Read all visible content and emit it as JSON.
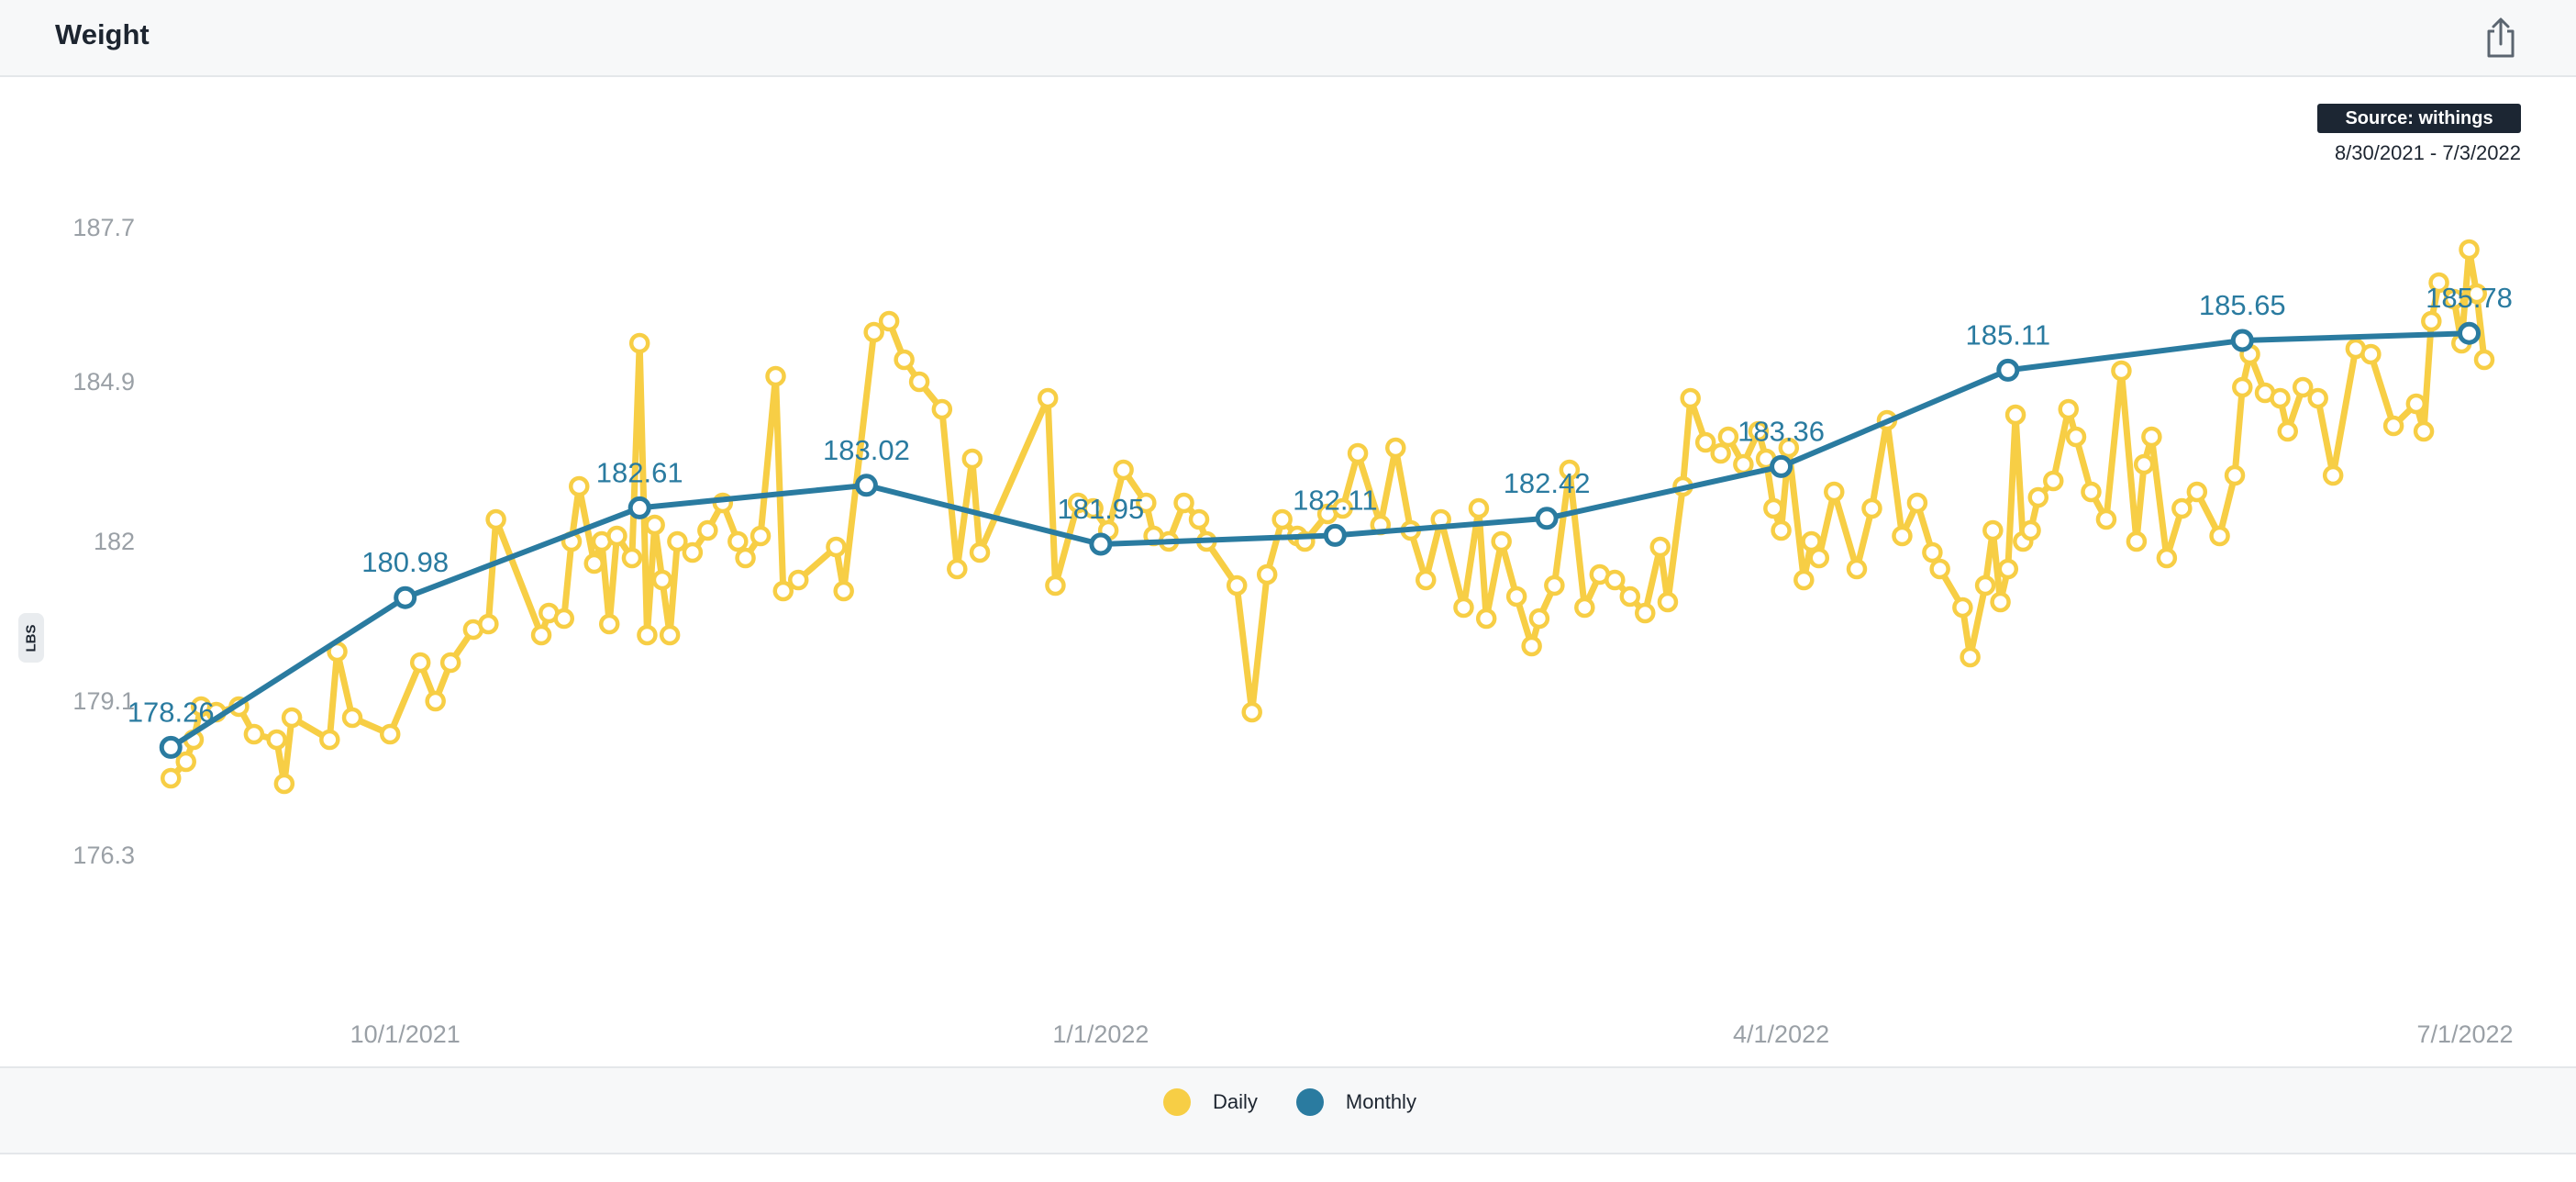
{
  "header": {
    "title": "Weight"
  },
  "source_label": "Source: withings",
  "date_range": "8/30/2021 - 7/3/2022",
  "unit_label": "LBS",
  "colors": {
    "daily": "#f7ce45",
    "monthly": "#2a7ba0",
    "overlap": "#216e3c"
  },
  "legend": {
    "daily": "Daily",
    "monthly": "Monthly"
  },
  "chart_data": {
    "type": "line",
    "title": "Weight",
    "ylabel": "LBS",
    "ylim": [
      174.5,
      189.0
    ],
    "xlim": [
      "2021-08-30",
      "2022-07-03"
    ],
    "y_ticks": [
      "187.7",
      "184.9",
      "182",
      "179.1",
      "176.3"
    ],
    "y_tick_values": [
      187.7,
      184.9,
      182.0,
      179.1,
      176.3
    ],
    "x_ticks": [
      "10/1/2021",
      "1/1/2022",
      "4/1/2022",
      "7/1/2022"
    ],
    "x_tick_dates": [
      "2021-10-01",
      "2022-01-01",
      "2022-04-01",
      "2022-07-01"
    ],
    "grid": false,
    "legend_position": "bottom",
    "series": [
      {
        "name": "Monthly",
        "points": [
          [
            "2021-08-31",
            178.26
          ],
          [
            "2021-10-01",
            180.98
          ],
          [
            "2021-11-01",
            182.61
          ],
          [
            "2021-12-01",
            183.02
          ],
          [
            "2022-01-01",
            181.95
          ],
          [
            "2022-02-01",
            182.11
          ],
          [
            "2022-03-01",
            182.42
          ],
          [
            "2022-04-01",
            183.36
          ],
          [
            "2022-05-01",
            185.11
          ],
          [
            "2022-06-01",
            185.65
          ],
          [
            "2022-07-01",
            185.78
          ]
        ],
        "labels": [
          "178.26",
          "180.98",
          "182.61",
          "183.02",
          "181.95",
          "182.11",
          "182.42",
          "183.36",
          "185.11",
          "185.65",
          "185.78"
        ]
      },
      {
        "name": "Daily",
        "points": [
          [
            "2021-08-31",
            177.7
          ],
          [
            "2021-09-02",
            178.0
          ],
          [
            "2021-09-03",
            178.4
          ],
          [
            "2021-09-04",
            179.0
          ],
          [
            "2021-09-06",
            178.9
          ],
          [
            "2021-09-09",
            179.0
          ],
          [
            "2021-09-11",
            178.5
          ],
          [
            "2021-09-14",
            178.4
          ],
          [
            "2021-09-15",
            177.6
          ],
          [
            "2021-09-16",
            178.8
          ],
          [
            "2021-09-21",
            178.4
          ],
          [
            "2021-09-22",
            180.0
          ],
          [
            "2021-09-24",
            178.8
          ],
          [
            "2021-09-29",
            178.5
          ],
          [
            "2021-10-03",
            179.8
          ],
          [
            "2021-10-05",
            179.1
          ],
          [
            "2021-10-07",
            179.8
          ],
          [
            "2021-10-10",
            180.4
          ],
          [
            "2021-10-12",
            180.5
          ],
          [
            "2021-10-13",
            182.4
          ],
          [
            "2021-10-19",
            180.3
          ],
          [
            "2021-10-20",
            180.7
          ],
          [
            "2021-10-22",
            180.6
          ],
          [
            "2021-10-23",
            182.0
          ],
          [
            "2021-10-24",
            183.0
          ],
          [
            "2021-10-26",
            181.6
          ],
          [
            "2021-10-27",
            182.0
          ],
          [
            "2021-10-28",
            180.5
          ],
          [
            "2021-10-29",
            182.1
          ],
          [
            "2021-10-31",
            181.7
          ],
          [
            "2021-11-01",
            185.6
          ],
          [
            "2021-11-02",
            180.3
          ],
          [
            "2021-11-03",
            182.3
          ],
          [
            "2021-11-04",
            181.3
          ],
          [
            "2021-11-05",
            180.3
          ],
          [
            "2021-11-06",
            182.0
          ],
          [
            "2021-11-08",
            181.8
          ],
          [
            "2021-11-10",
            182.2
          ],
          [
            "2021-11-12",
            182.7
          ],
          [
            "2021-11-14",
            182.0
          ],
          [
            "2021-11-15",
            181.7
          ],
          [
            "2021-11-17",
            182.1
          ],
          [
            "2021-11-19",
            185.0
          ],
          [
            "2021-11-20",
            181.1
          ],
          [
            "2021-11-22",
            181.3
          ],
          [
            "2021-11-27",
            181.9
          ],
          [
            "2021-11-28",
            181.1
          ],
          [
            "2021-12-02",
            185.8
          ],
          [
            "2021-12-04",
            186.0
          ],
          [
            "2021-12-06",
            185.3
          ],
          [
            "2021-12-08",
            184.9
          ],
          [
            "2021-12-11",
            184.4
          ],
          [
            "2021-12-13",
            181.5
          ],
          [
            "2021-12-15",
            183.5
          ],
          [
            "2021-12-16",
            181.8
          ],
          [
            "2021-12-25",
            184.6
          ],
          [
            "2021-12-26",
            181.2
          ],
          [
            "2021-12-29",
            182.7
          ],
          [
            "2021-12-31",
            182.6
          ],
          [
            "2022-01-02",
            182.2
          ],
          [
            "2022-01-04",
            183.3
          ],
          [
            "2022-01-07",
            182.7
          ],
          [
            "2022-01-08",
            182.1
          ],
          [
            "2022-01-10",
            182.0
          ],
          [
            "2022-01-12",
            182.7
          ],
          [
            "2022-01-14",
            182.4
          ],
          [
            "2022-01-15",
            182.0
          ],
          [
            "2022-01-19",
            181.2
          ],
          [
            "2022-01-21",
            178.9
          ],
          [
            "2022-01-23",
            181.4
          ],
          [
            "2022-01-25",
            182.4
          ],
          [
            "2022-01-27",
            182.1
          ],
          [
            "2022-01-28",
            182.0
          ],
          [
            "2022-01-31",
            182.5
          ],
          [
            "2022-02-02",
            182.6
          ],
          [
            "2022-02-04",
            183.6
          ],
          [
            "2022-02-07",
            182.3
          ],
          [
            "2022-02-09",
            183.7
          ],
          [
            "2022-02-11",
            182.2
          ],
          [
            "2022-02-13",
            181.3
          ],
          [
            "2022-02-15",
            182.4
          ],
          [
            "2022-02-18",
            180.8
          ],
          [
            "2022-02-20",
            182.6
          ],
          [
            "2022-02-21",
            180.6
          ],
          [
            "2022-02-23",
            182.0
          ],
          [
            "2022-02-25",
            181.0
          ],
          [
            "2022-02-27",
            180.1
          ],
          [
            "2022-02-28",
            180.6
          ],
          [
            "2022-03-02",
            181.2
          ],
          [
            "2022-03-04",
            183.3
          ],
          [
            "2022-03-06",
            180.8
          ],
          [
            "2022-03-08",
            181.4
          ],
          [
            "2022-03-10",
            181.3
          ],
          [
            "2022-03-12",
            181.0
          ],
          [
            "2022-03-14",
            180.7
          ],
          [
            "2022-03-16",
            181.9
          ],
          [
            "2022-03-17",
            180.9
          ],
          [
            "2022-03-19",
            183.0
          ],
          [
            "2022-03-20",
            184.6
          ],
          [
            "2022-03-22",
            183.8
          ],
          [
            "2022-03-24",
            183.6
          ],
          [
            "2022-03-25",
            183.9
          ],
          [
            "2022-03-27",
            183.4
          ],
          [
            "2022-03-29",
            184.0
          ],
          [
            "2022-03-30",
            183.5
          ],
          [
            "2022-03-31",
            182.6
          ],
          [
            "2022-04-01",
            182.2
          ],
          [
            "2022-04-02",
            183.7
          ],
          [
            "2022-04-04",
            181.3
          ],
          [
            "2022-04-05",
            182.0
          ],
          [
            "2022-04-06",
            181.7
          ],
          [
            "2022-04-08",
            182.9
          ],
          [
            "2022-04-11",
            181.5
          ],
          [
            "2022-04-13",
            182.6
          ],
          [
            "2022-04-15",
            184.2
          ],
          [
            "2022-04-17",
            182.1
          ],
          [
            "2022-04-19",
            182.7
          ],
          [
            "2022-04-21",
            181.8
          ],
          [
            "2022-04-22",
            181.5
          ],
          [
            "2022-04-25",
            180.8
          ],
          [
            "2022-04-26",
            179.9
          ],
          [
            "2022-04-28",
            181.2
          ],
          [
            "2022-04-29",
            182.2
          ],
          [
            "2022-04-30",
            180.9
          ],
          [
            "2022-05-01",
            181.5
          ],
          [
            "2022-05-02",
            184.3
          ],
          [
            "2022-05-03",
            182.0
          ],
          [
            "2022-05-04",
            182.2
          ],
          [
            "2022-05-05",
            182.8
          ],
          [
            "2022-05-07",
            183.1
          ],
          [
            "2022-05-09",
            184.4
          ],
          [
            "2022-05-10",
            183.9
          ],
          [
            "2022-05-12",
            182.9
          ],
          [
            "2022-05-14",
            182.4
          ],
          [
            "2022-05-16",
            185.1
          ],
          [
            "2022-05-18",
            182.0
          ],
          [
            "2022-05-19",
            183.4
          ],
          [
            "2022-05-20",
            183.9
          ],
          [
            "2022-05-22",
            181.7
          ],
          [
            "2022-05-24",
            182.6
          ],
          [
            "2022-05-26",
            182.9
          ],
          [
            "2022-05-29",
            182.1
          ],
          [
            "2022-05-31",
            183.2
          ],
          [
            "2022-06-01",
            184.8
          ],
          [
            "2022-06-02",
            185.4
          ],
          [
            "2022-06-04",
            184.7
          ],
          [
            "2022-06-06",
            184.6
          ],
          [
            "2022-06-07",
            184.0
          ],
          [
            "2022-06-09",
            184.8
          ],
          [
            "2022-06-11",
            184.6
          ],
          [
            "2022-06-13",
            183.2
          ],
          [
            "2022-06-16",
            185.5
          ],
          [
            "2022-06-18",
            185.4
          ],
          [
            "2022-06-21",
            184.1
          ],
          [
            "2022-06-24",
            184.5
          ],
          [
            "2022-06-25",
            184.0
          ],
          [
            "2022-06-26",
            186.0
          ],
          [
            "2022-06-27",
            186.7
          ],
          [
            "2022-06-29",
            186.4
          ],
          [
            "2022-06-30",
            185.6
          ],
          [
            "2022-07-01",
            187.3
          ],
          [
            "2022-07-02",
            186.5
          ],
          [
            "2022-07-03",
            185.3
          ]
        ]
      }
    ]
  }
}
